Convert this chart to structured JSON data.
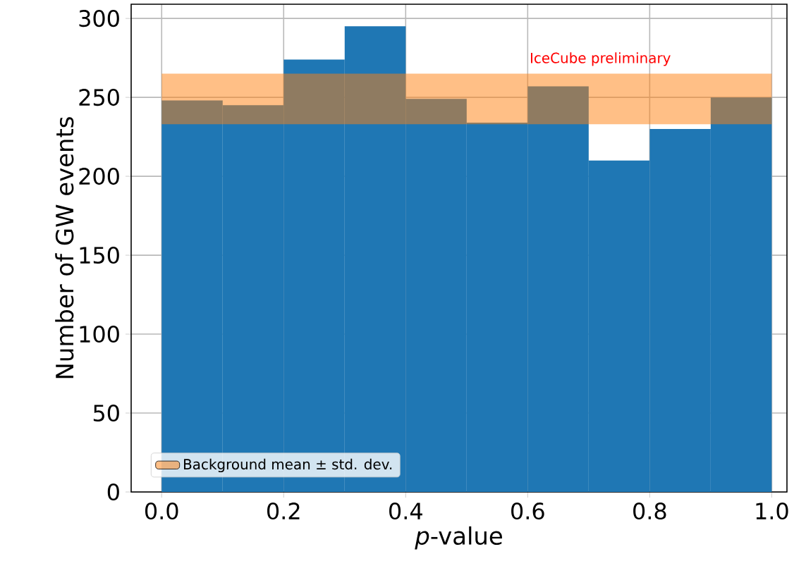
{
  "chart_data": {
    "type": "histogram",
    "xlabel": "*p*-value",
    "ylabel": "Number of GW events",
    "bins": [
      0,
      0.1,
      0.2,
      0.3,
      0.4,
      0.5,
      0.6,
      0.7,
      0.8,
      0.9,
      1.0
    ],
    "values": [
      248,
      245,
      274,
      295,
      249,
      234,
      257,
      210,
      230,
      250
    ],
    "color": "#1f77b4",
    "xlim": [
      -0.05,
      1.025
    ],
    "ylim": [
      0,
      309
    ],
    "xticks": [
      {
        "value": 0,
        "label": "0.0"
      },
      {
        "value": 0.2,
        "label": "0.2"
      },
      {
        "value": 0.4,
        "label": "0.4"
      },
      {
        "value": 0.6,
        "label": "0.6"
      },
      {
        "value": 0.8,
        "label": "0.8"
      },
      {
        "value": 1.0,
        "label": "1.0"
      }
    ],
    "yticks": [
      0,
      50,
      100,
      150,
      200,
      250,
      300
    ],
    "bands": [
      {
        "axis": "y",
        "from": 233,
        "to": 265,
        "label": "Background mean ± std. dev.",
        "color": "#ff7f0e"
      }
    ],
    "annotations": [
      "IceCube preliminary"
    ],
    "grid": true,
    "legend": "bottom left"
  }
}
